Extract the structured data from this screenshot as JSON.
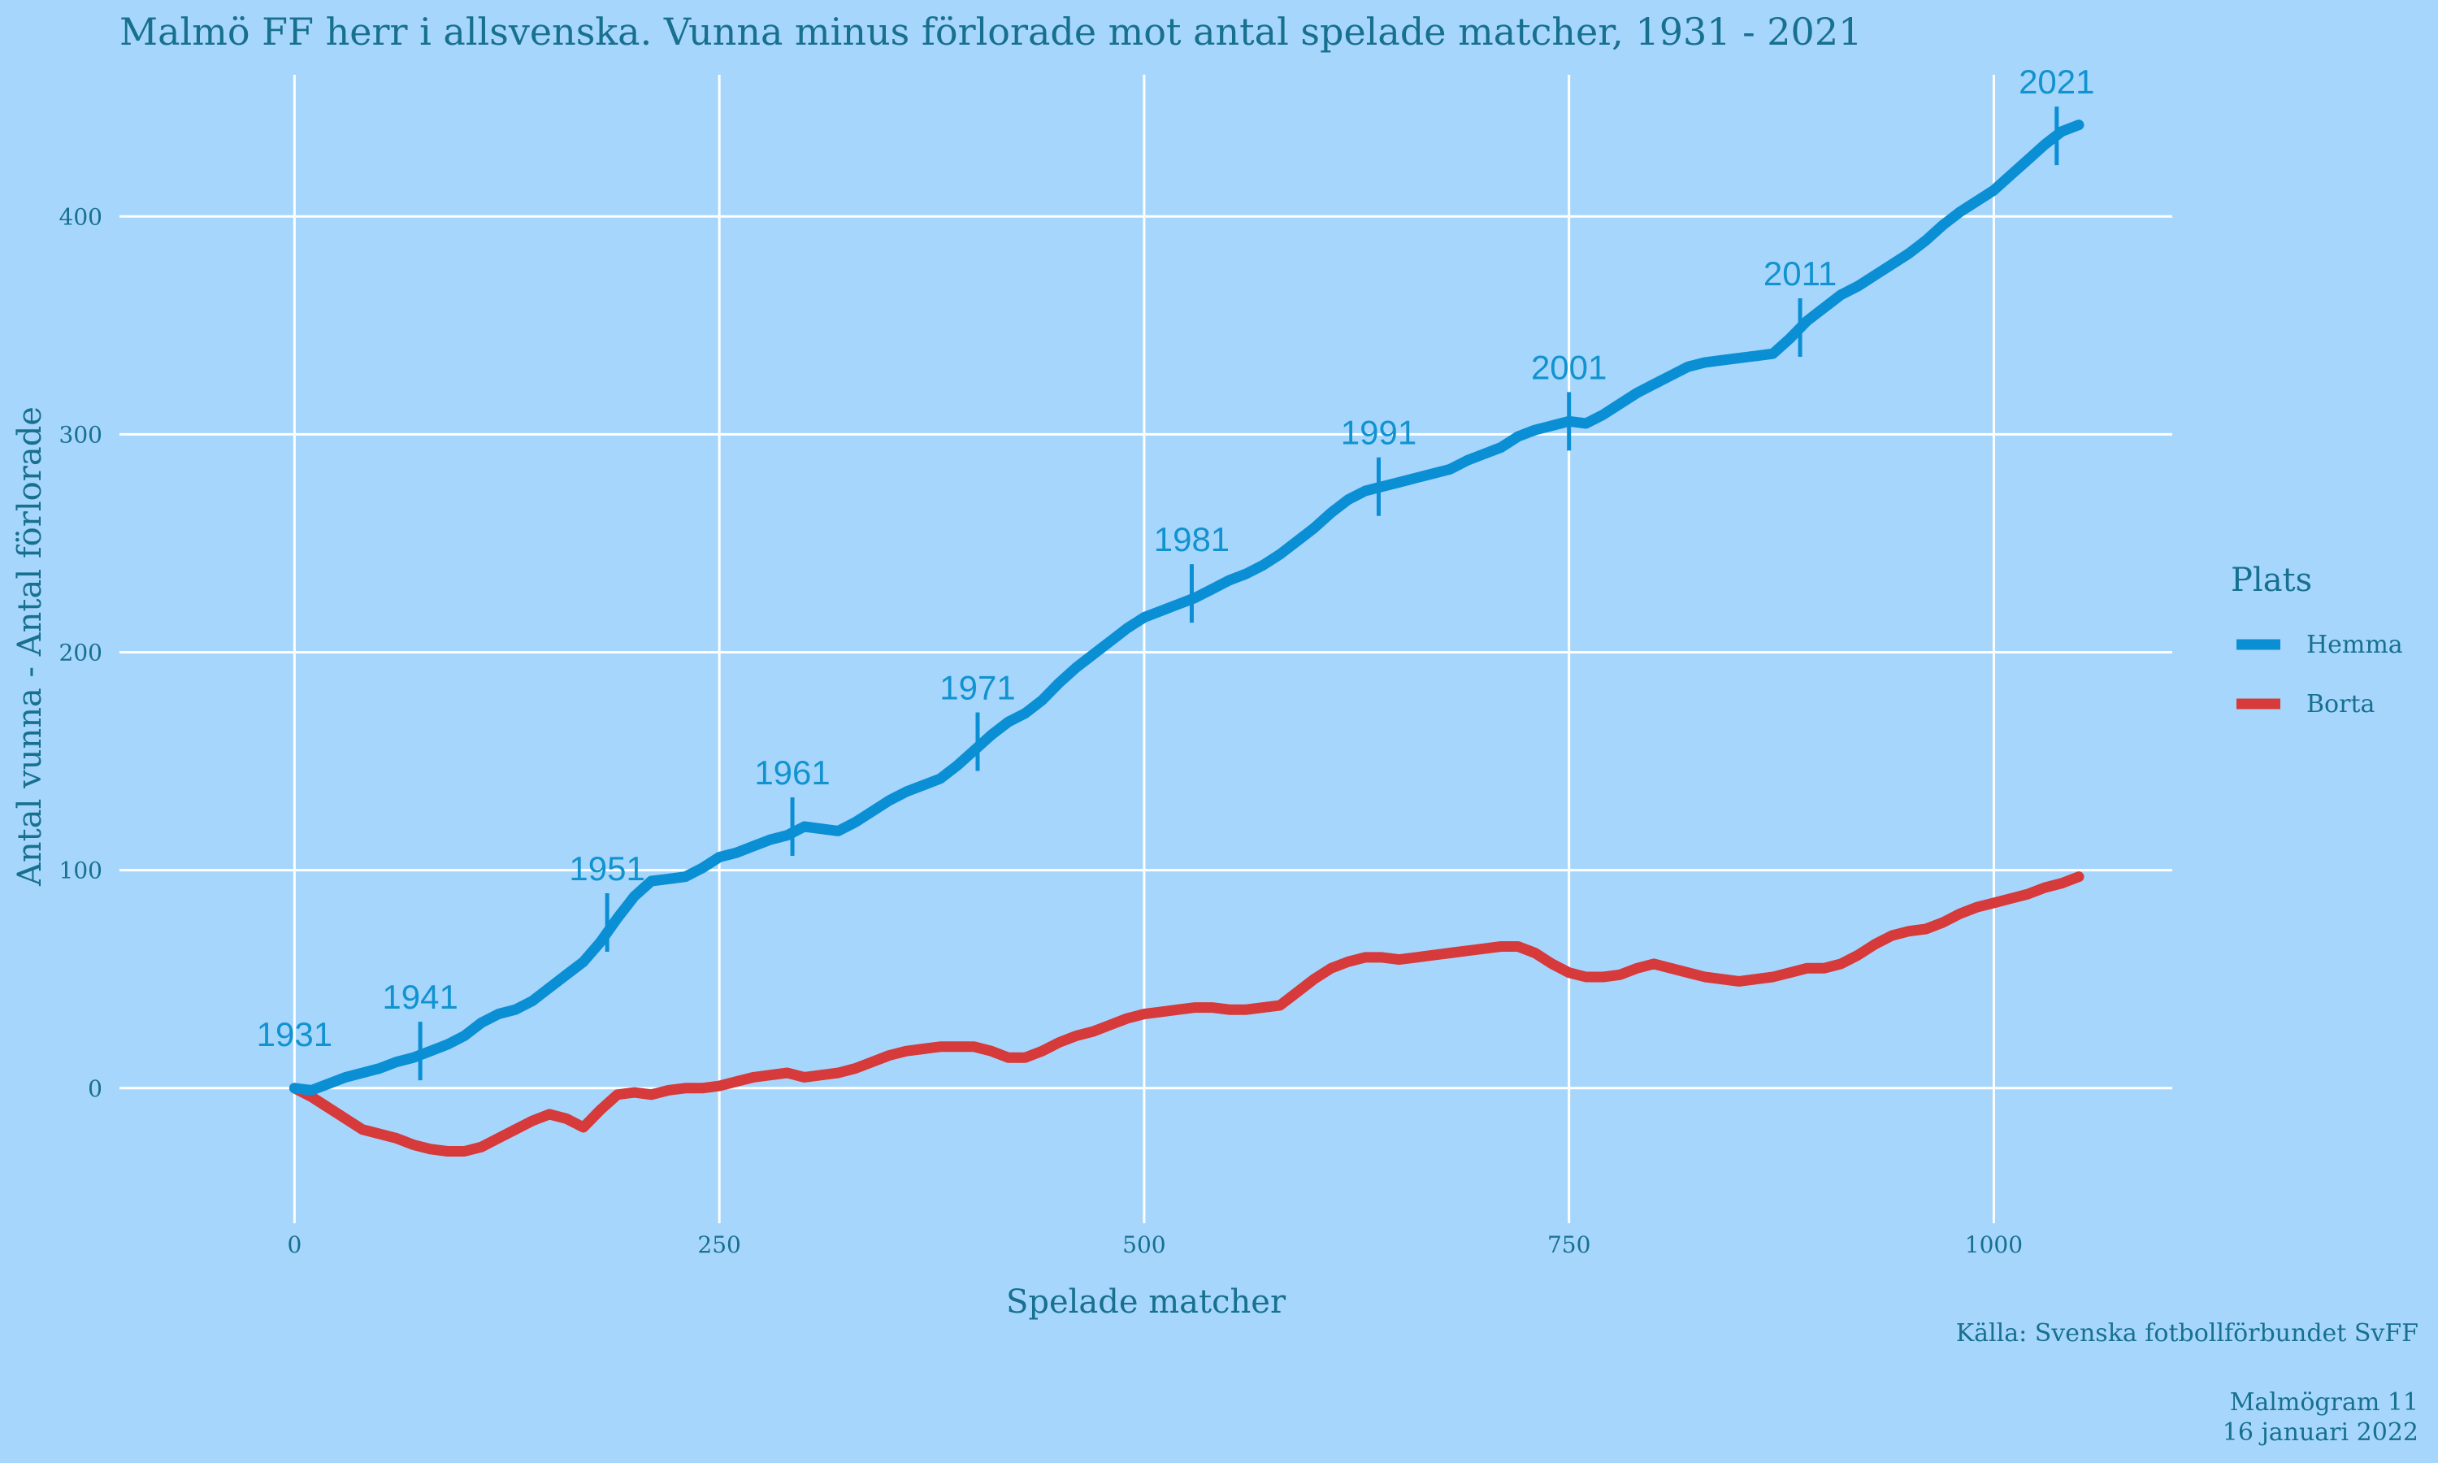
{
  "chart_data": {
    "type": "line",
    "title": "Malmö FF herr i allsvenska. Vunna minus förlorade mot antal spelade matcher, 1931 - 2021",
    "xlabel": "Spelade matcher",
    "ylabel": "Antal vunna - Antal förlorade",
    "xlim": [
      -103,
      1105
    ],
    "ylim": [
      -62,
      465
    ],
    "x_ticks": [
      0,
      250,
      500,
      750,
      1000
    ],
    "x_tick_labels": [
      "0",
      "250",
      "500",
      "750",
      "1000"
    ],
    "y_ticks": [
      0,
      100,
      200,
      300,
      400
    ],
    "y_tick_labels": [
      "0",
      "100",
      "200",
      "300",
      "400"
    ],
    "grid": true,
    "legend": {
      "title": "Plats",
      "position": "right",
      "entries": [
        {
          "name": "Hemma",
          "color": "#0b8fd4"
        },
        {
          "name": "Borta",
          "color": "#d63a3a"
        }
      ]
    },
    "series": [
      {
        "name": "Hemma",
        "color": "#0b8fd4",
        "x": [
          0,
          10,
          20,
          30,
          40,
          50,
          60,
          70,
          80,
          90,
          100,
          110,
          120,
          130,
          140,
          150,
          160,
          170,
          180,
          190,
          200,
          210,
          220,
          230,
          240,
          250,
          260,
          270,
          280,
          290,
          300,
          310,
          320,
          330,
          340,
          350,
          360,
          370,
          380,
          390,
          400,
          410,
          420,
          430,
          440,
          450,
          460,
          470,
          480,
          490,
          500,
          510,
          520,
          530,
          540,
          550,
          560,
          570,
          580,
          590,
          600,
          610,
          620,
          630,
          640,
          650,
          660,
          670,
          680,
          690,
          700,
          710,
          720,
          730,
          740,
          750,
          760,
          770,
          780,
          790,
          800,
          810,
          820,
          830,
          840,
          850,
          860,
          870,
          880,
          890,
          900,
          910,
          920,
          930,
          940,
          950,
          960,
          970,
          980,
          990,
          1000,
          1010,
          1020,
          1030,
          1040,
          1050
        ],
        "y": [
          0,
          -1,
          2,
          5,
          7,
          9,
          12,
          14,
          17,
          20,
          24,
          30,
          34,
          36,
          40,
          46,
          52,
          58,
          67,
          78,
          88,
          95,
          96,
          97,
          101,
          106,
          108,
          111,
          114,
          116,
          120,
          119,
          118,
          122,
          127,
          132,
          136,
          139,
          142,
          148,
          155,
          162,
          168,
          172,
          178,
          186,
          193,
          199,
          205,
          211,
          216,
          219,
          222,
          225,
          229,
          233,
          236,
          240,
          245,
          251,
          257,
          264,
          270,
          274,
          276,
          278,
          280,
          282,
          284,
          288,
          291,
          294,
          299,
          302,
          304,
          306,
          305,
          309,
          314,
          319,
          323,
          327,
          331,
          333,
          334,
          335,
          336,
          337,
          344,
          352,
          358,
          364,
          368,
          373,
          378,
          383,
          389,
          396,
          402,
          407,
          412,
          419,
          426,
          433,
          439,
          442
        ]
      },
      {
        "name": "Borta",
        "color": "#d63a3a",
        "x": [
          0,
          10,
          20,
          30,
          40,
          50,
          60,
          70,
          80,
          90,
          100,
          110,
          120,
          130,
          140,
          150,
          160,
          170,
          180,
          190,
          200,
          210,
          220,
          230,
          240,
          250,
          260,
          270,
          280,
          290,
          300,
          310,
          320,
          330,
          340,
          350,
          360,
          370,
          380,
          390,
          400,
          410,
          420,
          430,
          440,
          450,
          460,
          470,
          480,
          490,
          500,
          510,
          520,
          530,
          540,
          550,
          560,
          570,
          580,
          590,
          600,
          610,
          620,
          630,
          640,
          650,
          660,
          670,
          680,
          690,
          700,
          710,
          720,
          730,
          740,
          750,
          760,
          770,
          780,
          790,
          800,
          810,
          820,
          830,
          840,
          850,
          860,
          870,
          880,
          890,
          900,
          910,
          920,
          930,
          940,
          950,
          960,
          970,
          980,
          990,
          1000,
          1010,
          1020,
          1030,
          1040,
          1050
        ],
        "y": [
          0,
          -4,
          -9,
          -14,
          -19,
          -21,
          -23,
          -26,
          -28,
          -29,
          -29,
          -27,
          -23,
          -19,
          -15,
          -12,
          -14,
          -18,
          -10,
          -3,
          -2,
          -3,
          -1,
          0,
          0,
          1,
          3,
          5,
          6,
          7,
          5,
          6,
          7,
          9,
          12,
          15,
          17,
          18,
          19,
          19,
          19,
          17,
          14,
          14,
          17,
          21,
          24,
          26,
          29,
          32,
          34,
          35,
          36,
          37,
          37,
          36,
          36,
          37,
          38,
          44,
          50,
          55,
          58,
          60,
          60,
          59,
          60,
          61,
          62,
          63,
          64,
          65,
          65,
          62,
          57,
          53,
          51,
          51,
          52,
          55,
          57,
          55,
          53,
          51,
          50,
          49,
          50,
          51,
          53,
          55,
          55,
          57,
          61,
          66,
          70,
          72,
          73,
          76,
          80,
          83,
          85,
          87,
          89,
          92,
          94,
          97
        ]
      }
    ],
    "annotations": [
      {
        "label": "1931",
        "x": 0,
        "y": 0
      },
      {
        "label": "1941",
        "x": 74,
        "y": 17
      },
      {
        "label": "1951",
        "x": 184,
        "y": 76
      },
      {
        "label": "1961",
        "x": 293,
        "y": 120
      },
      {
        "label": "1971",
        "x": 402,
        "y": 159
      },
      {
        "label": "1981",
        "x": 528,
        "y": 227
      },
      {
        "label": "1991",
        "x": 638,
        "y": 276
      },
      {
        "label": "2001",
        "x": 750,
        "y": 306
      },
      {
        "label": "2011",
        "x": 886,
        "y": 349
      },
      {
        "label": "2021",
        "x": 1037,
        "y": 437
      }
    ]
  },
  "caption": {
    "source": "Källa: Svenska fotbollförbundet SvFF",
    "author": "Malmögram 11",
    "date": "16 januari 2022"
  }
}
